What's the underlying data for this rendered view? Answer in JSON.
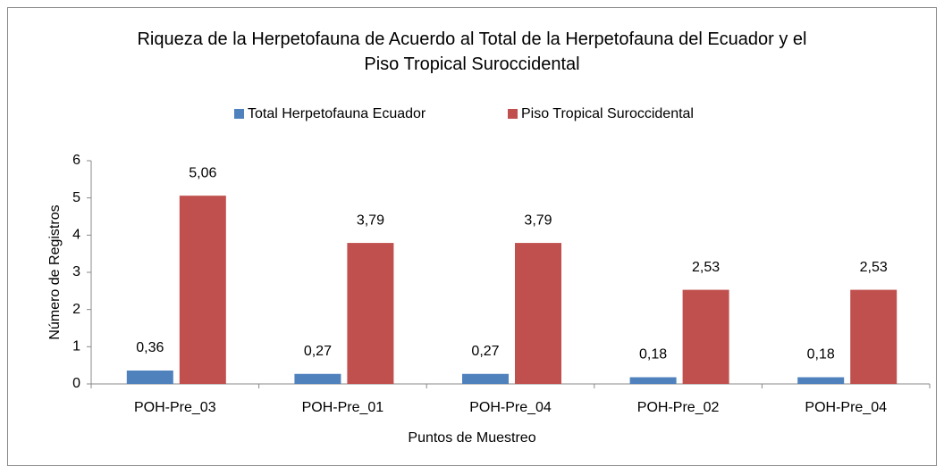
{
  "chart_data": {
    "type": "bar",
    "title": "Riqueza de la Herpetofauna de Acuerdo al Total de la Herpetofauna del Ecuador y el Piso Tropical Suroccidental",
    "x_label": "Puntos de Muestreo",
    "y_label": "Número de Registros",
    "categories": [
      "POH-Pre_03",
      "POH-Pre_01",
      "POH-Pre_04",
      "POH-Pre_02",
      "POH-Pre_04"
    ],
    "series": [
      {
        "name": "Total Herpetofauna Ecuador",
        "color": "#4f81bd",
        "values": [
          0.36,
          0.27,
          0.27,
          0.18,
          0.18
        ],
        "value_labels": [
          "0,36",
          "0,27",
          "0,27",
          "0,18",
          "0,18"
        ]
      },
      {
        "name": "Piso Tropical Suroccidental",
        "color": "#c0504d",
        "values": [
          5.06,
          3.79,
          3.79,
          2.53,
          2.53
        ],
        "value_labels": [
          "5,06",
          "3,79",
          "3,79",
          "2,53",
          "2,53"
        ]
      }
    ],
    "ylim": [
      0,
      6
    ],
    "yticks": [
      0,
      1,
      2,
      3,
      4,
      5,
      6
    ],
    "legend": "top"
  }
}
